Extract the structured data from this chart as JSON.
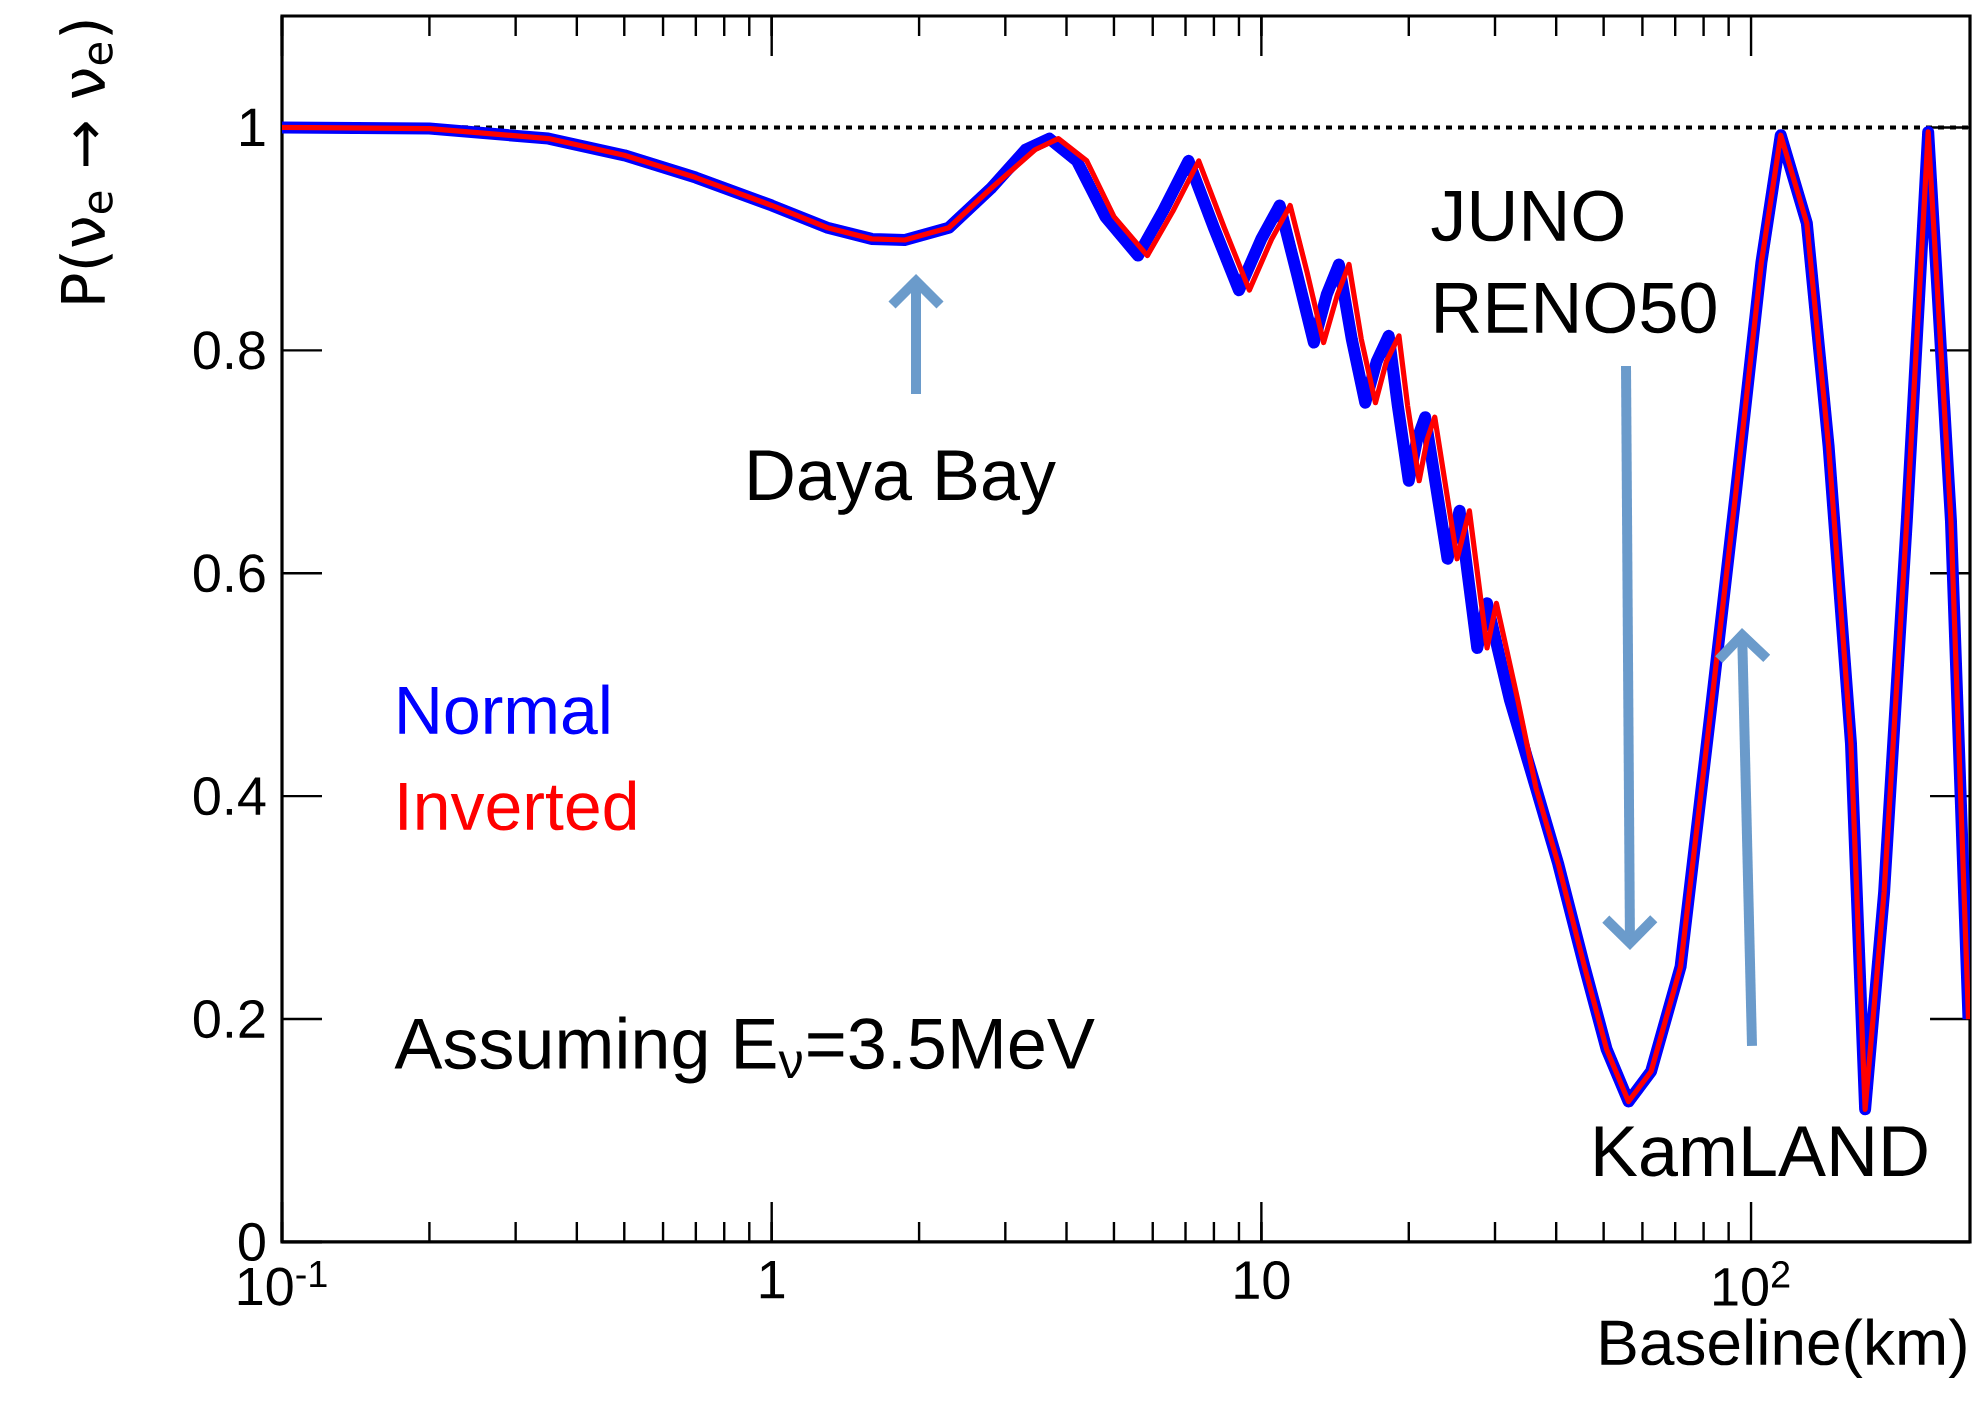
{
  "chart_data": {
    "type": "line",
    "xlabel": "Baseline(km)",
    "ylabel": "P(ν$_{e}$ → ν$_{e}$)",
    "log": "x",
    "xlim": [
      0.1,
      280
    ],
    "ylim": [
      0,
      1.1
    ],
    "xticks": [
      {
        "value": 0.1,
        "label": "10$^{-1}$"
      },
      1,
      10,
      {
        "value": 100,
        "label": "10$^{2}$"
      }
    ],
    "yticks": [
      0,
      0.2,
      0.4,
      0.6,
      0.8,
      1
    ],
    "grid": false,
    "legend": "left",
    "marker": "none",
    "line_style": "solid",
    "ref_lines": [
      {
        "axis": "y",
        "value": 1,
        "color": "#000000",
        "line_style": "dotted"
      }
    ],
    "annotations": [
      "Daya Bay",
      "JUNO RENO50",
      "KamLAND",
      "Assuming E$_{ν}$=3.5MeV"
    ],
    "series": [
      {
        "name": "Normal",
        "color": "#0000ff",
        "x": [
          0.1,
          0.2,
          0.35,
          0.5,
          0.7,
          1.0,
          1.3,
          1.6,
          1.87,
          2.3,
          2.8,
          3.3,
          3.69,
          4.2,
          4.8,
          5.6,
          6.3,
          7.1,
          8.0,
          9.0,
          10.0,
          10.9,
          11.8,
          12.8,
          13.6,
          14.4,
          15.3,
          16.3,
          17.2,
          18.2,
          19.0,
          20.0,
          20.8,
          21.6,
          24.0,
          25.4,
          27.6,
          28.9,
          32.2,
          36.4,
          40.4,
          45.7,
          50.7,
          56.2,
          62.5,
          71.8,
          82.6,
          93.2,
          105,
          115,
          130,
          144,
          160,
          171,
          187,
          208,
          230,
          256,
          278
        ],
        "values": [
          1.0,
          0.999,
          0.99,
          0.975,
          0.955,
          0.93,
          0.91,
          0.9,
          0.899,
          0.91,
          0.945,
          0.98,
          0.99,
          0.97,
          0.92,
          0.885,
          0.925,
          0.97,
          0.91,
          0.854,
          0.9,
          0.93,
          0.87,
          0.807,
          0.85,
          0.877,
          0.81,
          0.753,
          0.79,
          0.813,
          0.75,
          0.683,
          0.72,
          0.74,
          0.613,
          0.656,
          0.533,
          0.573,
          0.486,
          0.407,
          0.339,
          0.247,
          0.173,
          0.126,
          0.153,
          0.247,
          0.474,
          0.674,
          0.879,
          0.993,
          0.914,
          0.714,
          0.447,
          0.119,
          0.314,
          0.647,
          0.996,
          0.647,
          0.2
        ]
      },
      {
        "name": "Inverted",
        "color": "#ff0000",
        "x": [
          0.1,
          0.2,
          0.35,
          0.5,
          0.7,
          1.0,
          1.3,
          1.6,
          1.87,
          2.3,
          2.8,
          3.45,
          3.85,
          4.4,
          5.0,
          5.85,
          6.6,
          7.45,
          8.4,
          9.45,
          10.5,
          11.45,
          12.4,
          13.4,
          14.3,
          15.1,
          16.0,
          17.1,
          18.0,
          19.1,
          19.9,
          21.0,
          21.8,
          22.6,
          25.1,
          26.6,
          28.9,
          30.2,
          33.4,
          36.4,
          40.4,
          45.7,
          50.7,
          56.2,
          62.5,
          71.8,
          82.6,
          93.2,
          105,
          115,
          130,
          144,
          160,
          171,
          187,
          208,
          230,
          256,
          278
        ],
        "values": [
          1.0,
          0.999,
          0.99,
          0.975,
          0.955,
          0.93,
          0.91,
          0.9,
          0.899,
          0.91,
          0.945,
          0.98,
          0.99,
          0.97,
          0.92,
          0.885,
          0.925,
          0.97,
          0.91,
          0.854,
          0.9,
          0.93,
          0.87,
          0.807,
          0.85,
          0.877,
          0.81,
          0.753,
          0.79,
          0.813,
          0.75,
          0.683,
          0.72,
          0.74,
          0.613,
          0.656,
          0.533,
          0.573,
          0.486,
          0.407,
          0.339,
          0.247,
          0.173,
          0.126,
          0.153,
          0.247,
          0.474,
          0.674,
          0.879,
          0.993,
          0.914,
          0.714,
          0.447,
          0.119,
          0.314,
          0.647,
          0.996,
          0.647,
          0.2
        ]
      }
    ]
  }
}
